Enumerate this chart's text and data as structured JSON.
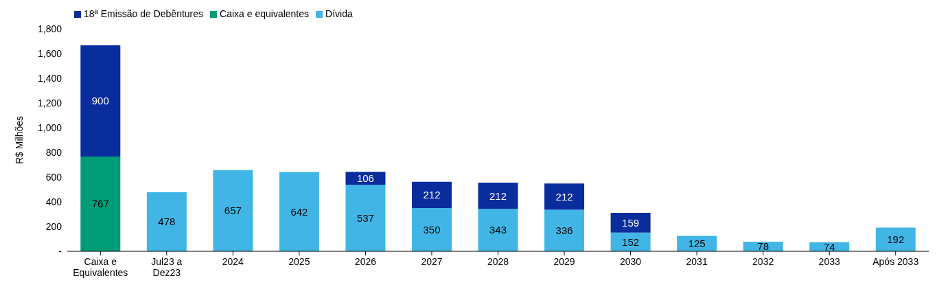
{
  "chart_data": {
    "type": "bar",
    "stacked": true,
    "ylabel": "R$ Milhões",
    "categories": [
      "Caixa e Equivalentes",
      "Jul23 a Dez23",
      "2024",
      "2025",
      "2026",
      "2027",
      "2028",
      "2029",
      "2030",
      "2031",
      "2032",
      "2033",
      "Após 2033"
    ],
    "series": [
      {
        "name": "Caixa e equivalentes",
        "color": "#009b77",
        "values": [
          767,
          null,
          null,
          null,
          null,
          null,
          null,
          null,
          null,
          null,
          null,
          null,
          null
        ]
      },
      {
        "name": "Dívida",
        "color": "#41b6e6",
        "values": [
          null,
          478,
          657,
          642,
          537,
          350,
          343,
          336,
          152,
          125,
          78,
          74,
          192
        ]
      },
      {
        "name": "18ª Emissão de Debêntures",
        "color": "#0a2d9e",
        "values": [
          900,
          null,
          null,
          null,
          106,
          212,
          212,
          212,
          159,
          null,
          null,
          null,
          null
        ]
      }
    ],
    "ylim": [
      0,
      1800
    ],
    "yticks": [
      {
        "value": 0,
        "label": "-"
      },
      200,
      400,
      600,
      800,
      {
        "value": 1000,
        "label": "1,000"
      },
      {
        "value": 1200,
        "label": "1,200"
      },
      {
        "value": 1400,
        "label": "1,400"
      },
      {
        "value": 1600,
        "label": "1,600"
      },
      {
        "value": 1800,
        "label": "1,800"
      }
    ],
    "data_labels": true,
    "legend": "top left",
    "grid": false
  }
}
